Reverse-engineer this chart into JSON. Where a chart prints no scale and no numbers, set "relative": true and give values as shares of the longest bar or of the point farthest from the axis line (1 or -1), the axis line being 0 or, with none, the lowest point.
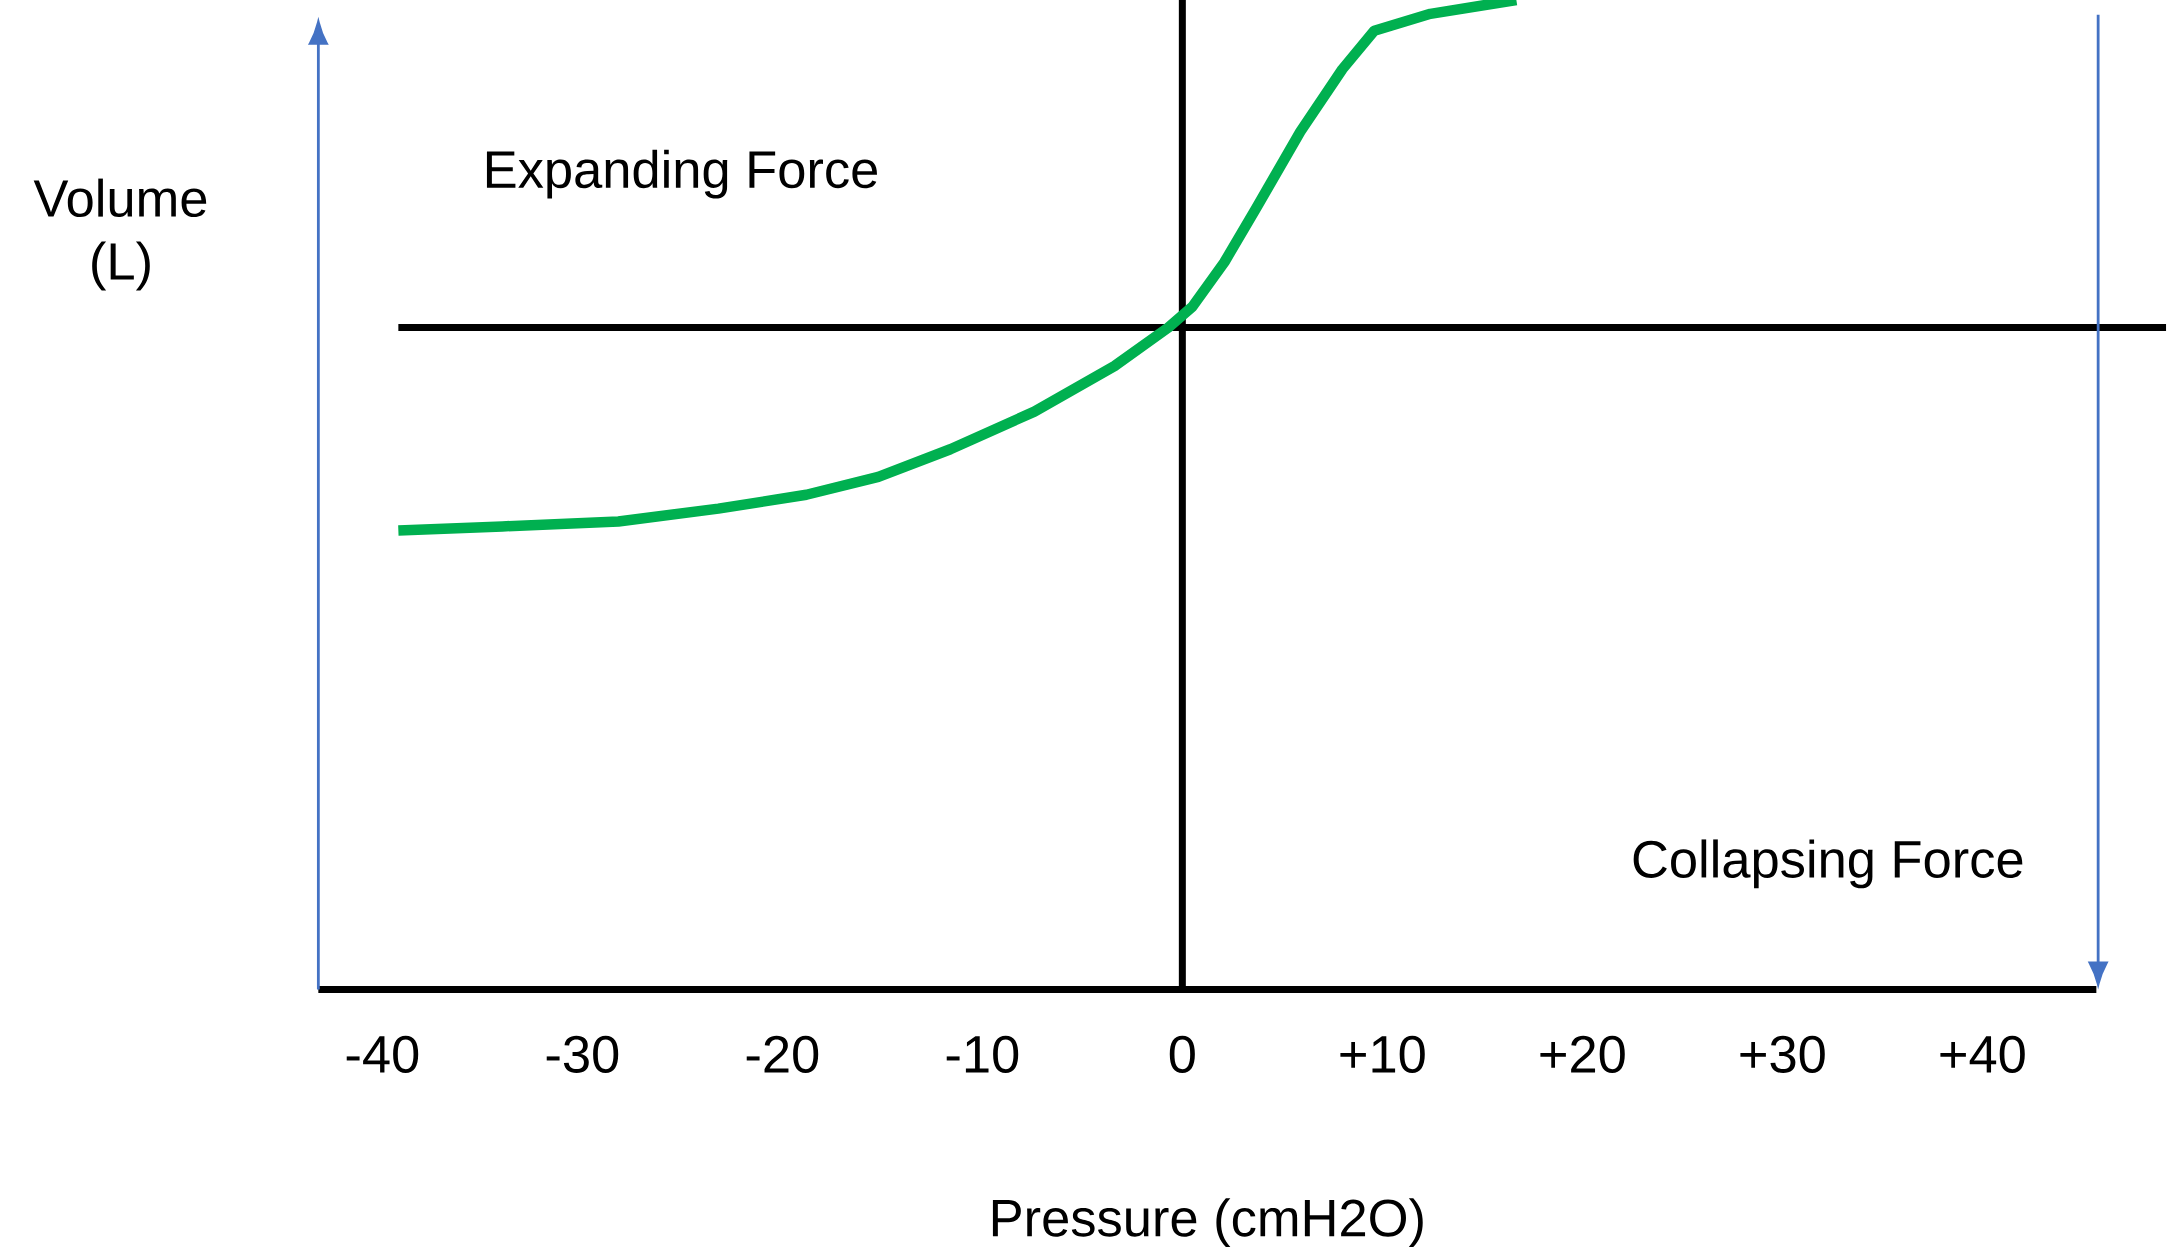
{
  "chart_data": {
    "type": "line",
    "relative": true,
    "xlabel": "Pressure (cmH2O)",
    "ylabel": "Volume (L)",
    "x": [
      -39.2,
      -34.0,
      -28.2,
      -23.2,
      -18.8,
      -15.2,
      -11.6,
      -7.4,
      -3.4,
      -0.7,
      0.5,
      2.1,
      3.7,
      5.9,
      8.0,
      9.6,
      12.4,
      16.7
    ],
    "values": [
      0.464,
      0.468,
      0.473,
      0.486,
      0.5,
      0.518,
      0.546,
      0.584,
      0.63,
      0.669,
      0.69,
      0.735,
      0.79,
      0.867,
      0.93,
      0.969,
      0.986,
      1.0
    ],
    "color": "#00b050",
    "xlim": [
      -43.2,
      45.7
    ],
    "xticks": [
      -40,
      -30,
      -20,
      -10,
      0,
      {
        "value": 10,
        "label": "+10"
      },
      {
        "value": 20,
        "label": "+20"
      },
      {
        "value": 30,
        "label": "+30"
      },
      {
        "value": 40,
        "label": "+40"
      }
    ],
    "ref_lines": [
      {
        "axis": "x",
        "value": 0,
        "color": "#000000"
      },
      {
        "axis": "y",
        "value": 0.669,
        "color": "#000000"
      }
    ],
    "annotations": [
      "Expanding Force",
      "Collapsing Force"
    ]
  }
}
